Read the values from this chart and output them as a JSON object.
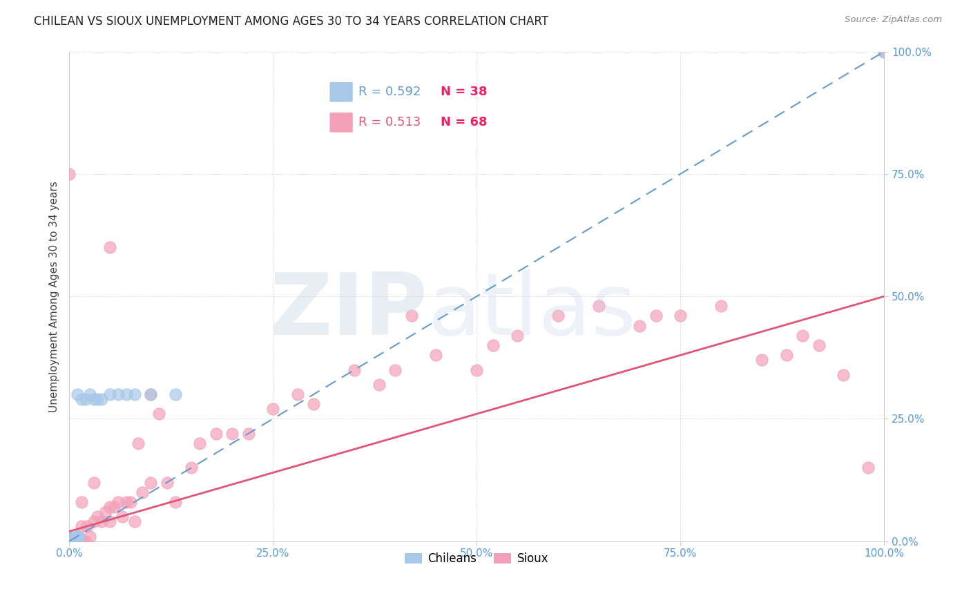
{
  "title": "CHILEAN VS SIOUX UNEMPLOYMENT AMONG AGES 30 TO 34 YEARS CORRELATION CHART",
  "source": "Source: ZipAtlas.com",
  "ylabel": "Unemployment Among Ages 30 to 34 years",
  "xlim": [
    0,
    1
  ],
  "ylim": [
    0,
    1
  ],
  "xticks": [
    0.0,
    0.25,
    0.5,
    0.75,
    1.0
  ],
  "yticks": [
    0.0,
    0.25,
    0.5,
    0.75,
    1.0
  ],
  "xticklabels": [
    "0.0%",
    "25.0%",
    "50.0%",
    "75.0%",
    "100.0%"
  ],
  "yticklabels": [
    "0.0%",
    "25.0%",
    "50.0%",
    "75.0%",
    "100.0%"
  ],
  "chilean_R": "0.592",
  "chilean_N": "38",
  "sioux_R": "0.513",
  "sioux_N": "68",
  "chilean_color": "#a8c8e8",
  "sioux_color": "#f4a0b8",
  "chilean_line_color": "#6699cc",
  "sioux_line_color": "#e05575",
  "tick_color": "#5599dd",
  "background_color": "#ffffff",
  "grid_color": "#dddddd",
  "watermark_zip_color": "#c5d5e5",
  "watermark_atlas_color": "#c8d5e8",
  "chilean_x": [
    0.0,
    0.0,
    0.0,
    0.0,
    0.0,
    0.0,
    0.0,
    0.0,
    0.0,
    0.0,
    0.0,
    0.0,
    0.0,
    0.0,
    0.0,
    0.003,
    0.004,
    0.005,
    0.006,
    0.007,
    0.008,
    0.009,
    0.01,
    0.01,
    0.012,
    0.015,
    0.02,
    0.025,
    0.03,
    0.035,
    0.04,
    0.05,
    0.06,
    0.07,
    0.08,
    0.1,
    0.13,
    1.0
  ],
  "chilean_y": [
    0.0,
    0.0,
    0.0,
    0.0,
    0.0,
    0.0,
    0.0,
    0.0,
    0.003,
    0.004,
    0.005,
    0.006,
    0.007,
    0.008,
    0.01,
    0.0,
    0.005,
    0.005,
    0.005,
    0.005,
    0.005,
    0.01,
    0.01,
    0.3,
    0.01,
    0.29,
    0.29,
    0.3,
    0.29,
    0.29,
    0.29,
    0.3,
    0.3,
    0.3,
    0.3,
    0.3,
    0.3,
    1.0
  ],
  "sioux_x": [
    0.0,
    0.0,
    0.0,
    0.0,
    0.003,
    0.004,
    0.005,
    0.006,
    0.008,
    0.01,
    0.01,
    0.012,
    0.015,
    0.015,
    0.018,
    0.02,
    0.022,
    0.025,
    0.03,
    0.03,
    0.035,
    0.04,
    0.045,
    0.05,
    0.05,
    0.055,
    0.06,
    0.065,
    0.07,
    0.075,
    0.08,
    0.085,
    0.09,
    0.1,
    0.11,
    0.12,
    0.13,
    0.15,
    0.16,
    0.18,
    0.2,
    0.22,
    0.25,
    0.28,
    0.3,
    0.35,
    0.38,
    0.4,
    0.42,
    0.45,
    0.5,
    0.52,
    0.55,
    0.6,
    0.65,
    0.7,
    0.72,
    0.75,
    0.8,
    0.85,
    0.88,
    0.9,
    0.92,
    0.95,
    0.98,
    1.0,
    0.05,
    0.1
  ],
  "sioux_y": [
    0.0,
    0.0,
    0.005,
    0.75,
    0.0,
    0.0,
    0.0,
    0.0,
    0.0,
    0.0,
    0.01,
    0.0,
    0.03,
    0.08,
    0.0,
    0.0,
    0.03,
    0.01,
    0.04,
    0.12,
    0.05,
    0.04,
    0.06,
    0.04,
    0.07,
    0.07,
    0.08,
    0.05,
    0.08,
    0.08,
    0.04,
    0.2,
    0.1,
    0.12,
    0.26,
    0.12,
    0.08,
    0.15,
    0.2,
    0.22,
    0.22,
    0.22,
    0.27,
    0.3,
    0.28,
    0.35,
    0.32,
    0.35,
    0.46,
    0.38,
    0.35,
    0.4,
    0.42,
    0.46,
    0.48,
    0.44,
    0.46,
    0.46,
    0.48,
    0.37,
    0.38,
    0.42,
    0.4,
    0.34,
    0.15,
    1.0,
    0.6,
    0.3
  ]
}
